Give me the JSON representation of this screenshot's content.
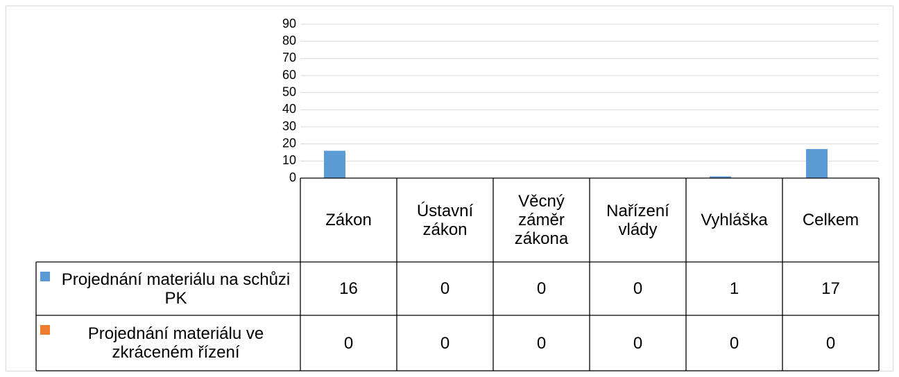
{
  "chart_data": {
    "type": "bar",
    "categories": [
      "Zákon",
      "Ústavní zákon",
      "Věcný záměr zákona",
      "Nařízení vlády",
      "Vyhláška",
      "Celkem"
    ],
    "series": [
      {
        "name": "Projednání materiálu na schůzi PK",
        "color": "#5b9bd5",
        "values": [
          16,
          0,
          0,
          0,
          1,
          17
        ]
      },
      {
        "name": "Projednání materiálu ve zkráceném řízení",
        "color": "#ed7d31",
        "values": [
          0,
          0,
          0,
          0,
          0,
          0
        ]
      }
    ],
    "ylim": [
      0,
      90
    ],
    "yticks": [
      0,
      10,
      20,
      30,
      40,
      50,
      60,
      70,
      80,
      90
    ],
    "grid": true
  }
}
